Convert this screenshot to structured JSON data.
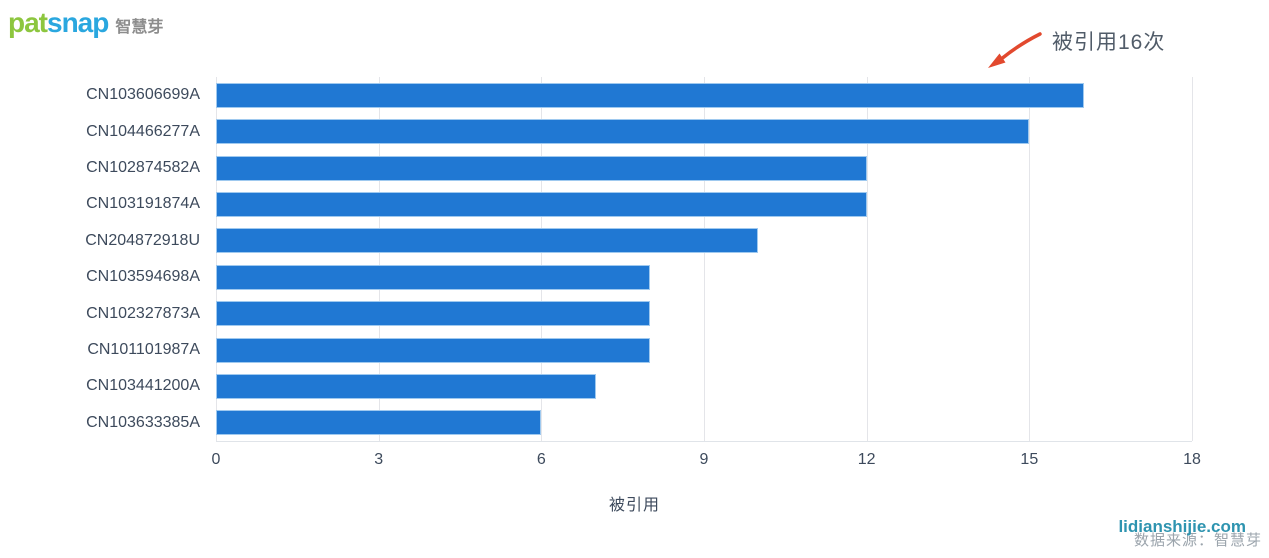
{
  "logo": {
    "pat": "pat",
    "snap": "snap",
    "brand_cn": "智慧芽"
  },
  "annotation": {
    "text": "被引用16次"
  },
  "chart_data": {
    "type": "bar",
    "orientation": "horizontal",
    "categories": [
      "CN103606699A",
      "CN104466277A",
      "CN102874582A",
      "CN103191874A",
      "CN204872918U",
      "CN103594698A",
      "CN102327873A",
      "CN101101987A",
      "CN103441200A",
      "CN103633385A"
    ],
    "values": [
      16,
      15,
      12,
      12,
      10,
      8,
      8,
      8,
      7,
      6
    ],
    "xlabel": "被引用",
    "xlim": [
      0,
      18
    ],
    "xticks": [
      0,
      3,
      6,
      9,
      12,
      15,
      18
    ],
    "grid": true,
    "legend": false,
    "annotation": "被引用16次"
  },
  "footer": {
    "watermark": "lidianshijie.com",
    "source": "数据来源：智慧芽"
  },
  "colors": {
    "bar": "#2078d3",
    "bar_border": "#9fc9ef",
    "arrow": "#e2492e",
    "logo_green": "#8dc63f",
    "logo_blue": "#2aa7df",
    "logo_gray": "#8d8d8d",
    "watermark": "#2e94b0",
    "source_text": "#9ba4ac",
    "axis_text": "#3d4a5c",
    "gridline": "#e4e5e9"
  }
}
